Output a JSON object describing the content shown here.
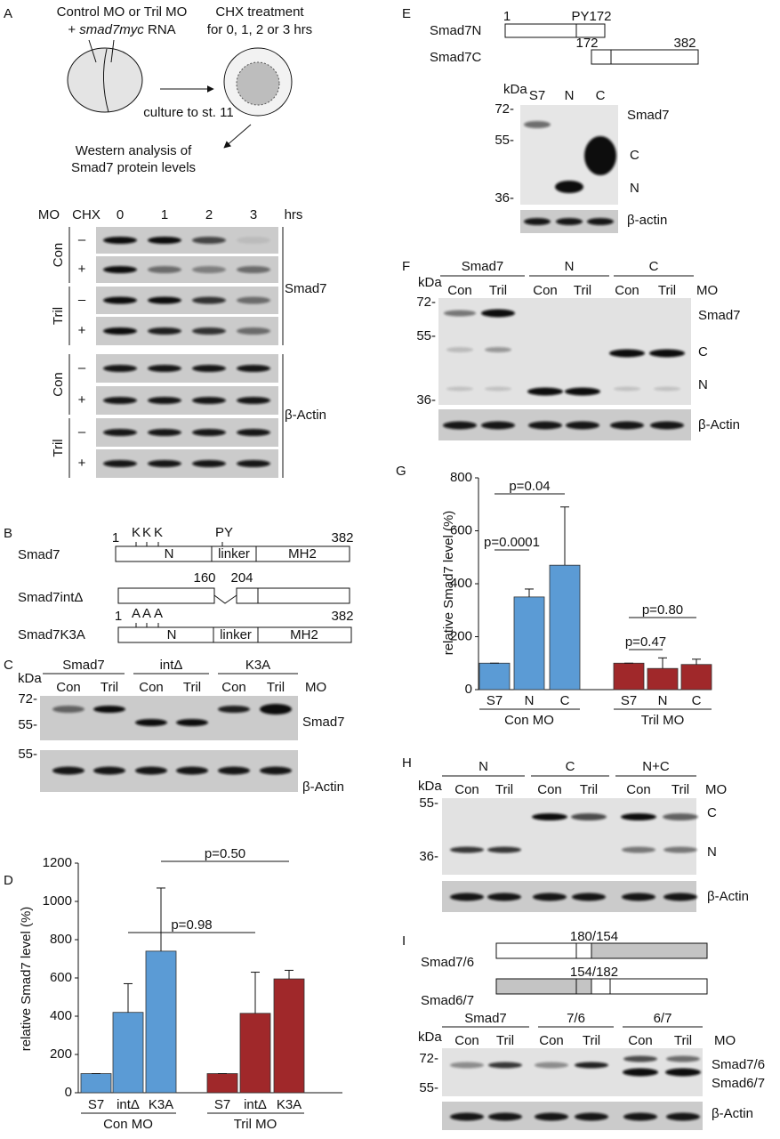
{
  "panels": {
    "A": {
      "letter": "A",
      "injection": {
        "line1": "Control MO or Tril MO",
        "line2": [
          "+ ",
          "smad7myc",
          " RNA"
        ]
      },
      "treatment": [
        "CHX treatment",
        "for 0, 1, 2 or 3 hrs"
      ],
      "culture": "culture to st. 11",
      "analysis": [
        "Western analysis of",
        "Smad7 protein levels"
      ],
      "columns": {
        "mo": "MO",
        "chx": "CHX",
        "times": [
          "0",
          "1",
          "2",
          "3"
        ],
        "unit": "hrs"
      },
      "rows": {
        "groups": [
          "Con",
          "Tril",
          "Con",
          "Tril"
        ],
        "signs": [
          "–",
          "+",
          "–",
          "+",
          "–",
          "+",
          "–",
          "+"
        ]
      },
      "proteins": [
        "Smad7",
        "β-Actin"
      ]
    },
    "B": {
      "letter": "B",
      "constructs": [
        {
          "name": "Smad7",
          "start": "1",
          "end": "382",
          "sites": [
            "K",
            "K",
            "K"
          ],
          "motif": "PY",
          "domains": [
            "N",
            "linker",
            "MH2"
          ]
        },
        {
          "name": "Smad7intΔ",
          "breaks": [
            "160",
            "204"
          ]
        },
        {
          "name": "Smad7K3A",
          "start": "1",
          "end": "382",
          "sites": [
            "A",
            "A",
            "A"
          ],
          "domains": [
            "N",
            "linker",
            "MH2"
          ]
        }
      ]
    },
    "C": {
      "letter": "C",
      "kda": "kDa",
      "constructs": [
        "Smad7",
        "intΔ",
        "K3A"
      ],
      "mo": [
        "Con",
        "Tril",
        "Con",
        "Tril",
        "Con",
        "Tril"
      ],
      "mo_label": "MO",
      "markers": [
        "72-",
        "55-",
        "55-"
      ],
      "proteins": [
        "Smad7",
        "β-Actin"
      ]
    },
    "D": {
      "letter": "D"
    },
    "E": {
      "letter": "E",
      "constructs": {
        "n_name": "Smad7N",
        "n_start": "1",
        "n_end": "PY172",
        "c_name": "Smad7C",
        "c_start": "172",
        "c_end": "382"
      },
      "kda": "kDa",
      "lanes": [
        "S7",
        "N",
        "C"
      ],
      "markers": [
        "72-",
        "55-",
        "36-"
      ],
      "proteins": [
        "Smad7",
        "C",
        "N",
        "β-actin"
      ]
    },
    "F": {
      "letter": "F",
      "kda": "kDa",
      "constructs": [
        "Smad7",
        "N",
        "C"
      ],
      "mo": [
        "Con",
        "Tril",
        "Con",
        "Tril",
        "Con",
        "Tril"
      ],
      "mo_label": "MO",
      "markers": [
        "72-",
        "55-",
        "36-"
      ],
      "proteins": [
        "Smad7",
        "C",
        "N",
        "β-Actin"
      ]
    },
    "G": {
      "letter": "G"
    },
    "H": {
      "letter": "H",
      "kda": "kDa",
      "constructs": [
        "N",
        "C",
        "N+C"
      ],
      "mo": [
        "Con",
        "Tril",
        "Con",
        "Tril",
        "Con",
        "Tril"
      ],
      "mo_label": "MO",
      "markers": [
        "55-",
        "36-"
      ],
      "proteins": [
        "C",
        "N",
        "β-Actin"
      ]
    },
    "I": {
      "letter": "I",
      "chimeras": [
        {
          "name": "Smad7/6",
          "junction": "180/154"
        },
        {
          "name": "Smad6/7",
          "junction": "154/182"
        }
      ],
      "kda": "kDa",
      "constructs": [
        "Smad7",
        "7/6",
        "6/7"
      ],
      "mo": [
        "Con",
        "Tril",
        "Con",
        "Tril",
        "Con",
        "Tril"
      ],
      "mo_label": "MO",
      "markers": [
        "72-",
        "55-"
      ],
      "proteins": [
        "Smad7/6",
        "Smad6/7",
        "β-Actin"
      ]
    }
  },
  "chart_data": [
    {
      "type": "bar",
      "ylabel": "relative Smad7 level (%)",
      "categories": [
        "S7",
        "intΔ",
        "K3A"
      ],
      "series": [
        {
          "name": "Con MO",
          "color": "#5b9bd5",
          "values": [
            100,
            420,
            740
          ],
          "errors": [
            0,
            150,
            330
          ]
        },
        {
          "name": "Tril MO",
          "color": "#a0282a",
          "values": [
            100,
            415,
            595
          ],
          "errors": [
            0,
            215,
            45
          ]
        }
      ],
      "ylim": [
        0,
        1200
      ],
      "yticks": [
        0,
        200,
        400,
        600,
        800,
        1000,
        1200
      ],
      "annotations": [
        "p=0.98",
        "p=0.50"
      ]
    },
    {
      "type": "bar",
      "ylabel": "relative Smad7 level (%)",
      "categories": [
        "S7",
        "N",
        "C"
      ],
      "series": [
        {
          "name": "Con MO",
          "color": "#5b9bd5",
          "values": [
            100,
            350,
            470
          ],
          "errors": [
            0,
            30,
            220
          ]
        },
        {
          "name": "Tril MO",
          "color": "#a0282a",
          "values": [
            100,
            80,
            95
          ],
          "errors": [
            0,
            40,
            20
          ]
        }
      ],
      "ylim": [
        0,
        800
      ],
      "yticks": [
        0,
        200,
        400,
        600,
        800
      ],
      "annotations": [
        "p=0.0001",
        "p=0.04",
        "p=0.47",
        "p=0.80"
      ]
    }
  ]
}
